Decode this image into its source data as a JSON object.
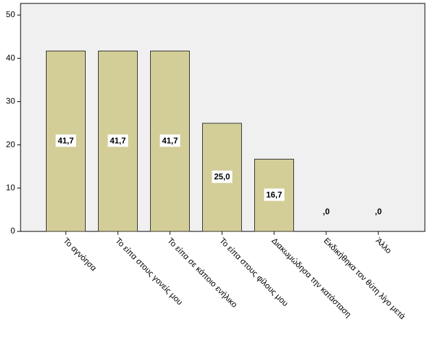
{
  "chart_data": {
    "type": "bar",
    "categories": [
      "Το αγνόησα",
      "Το είπα στους γονείς μου",
      "Το είπα σε κάποιο ενήλικο",
      "Το είπα στους φίλους μου",
      "Διακωμώδησα την κατάσταση",
      "Εκδικήθηκα τον θύτη λίγο μετά",
      "Άλλο"
    ],
    "values": [
      41.7,
      41.7,
      41.7,
      25.0,
      16.7,
      0,
      0
    ],
    "value_labels": [
      "41,7",
      "41,7",
      "41,7",
      "25,0",
      "16,7",
      ",0",
      ",0"
    ],
    "color": "#d3ce97",
    "ylim": [
      0,
      52.7
    ],
    "yticks": [
      0,
      10,
      20,
      30,
      40,
      50
    ],
    "grid": false
  }
}
